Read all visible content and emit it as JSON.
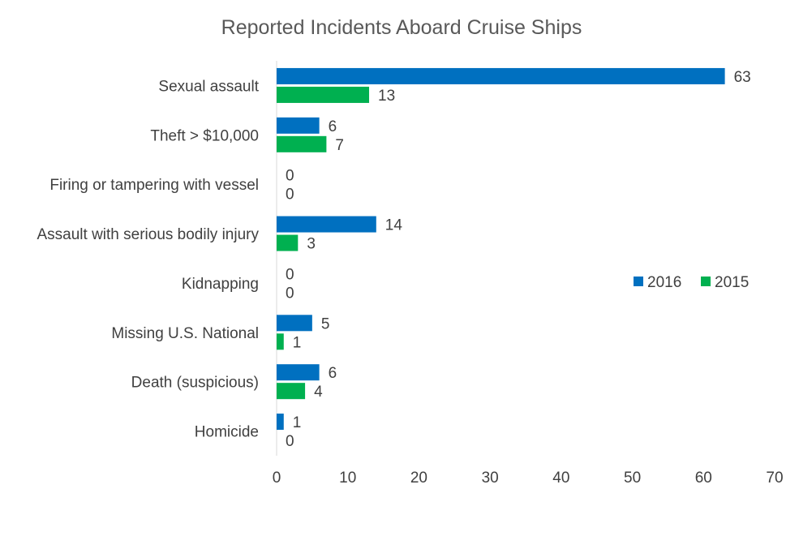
{
  "chart_data": {
    "type": "bar",
    "orientation": "horizontal",
    "title": "Reported Incidents Aboard Cruise Ships",
    "xlabel": "",
    "ylabel": "",
    "categories": [
      "Sexual assault",
      "Theft > $10,000",
      "Firing or tampering with vessel",
      "Assault with serious bodily injury",
      "Kidnapping",
      "Missing U.S. National",
      "Death (suspicious)",
      "Homicide"
    ],
    "series": [
      {
        "name": "2016",
        "color": "#0070C0",
        "values": [
          63,
          6,
          0,
          14,
          0,
          5,
          6,
          1
        ]
      },
      {
        "name": "2015",
        "color": "#00B050",
        "values": [
          13,
          7,
          0,
          3,
          0,
          1,
          4,
          0
        ]
      }
    ],
    "xlim": [
      0,
      70
    ],
    "xticks": [
      0,
      10,
      20,
      30,
      40,
      50,
      60,
      70
    ],
    "grid": false,
    "legend_position": "right",
    "data_labels": true
  }
}
